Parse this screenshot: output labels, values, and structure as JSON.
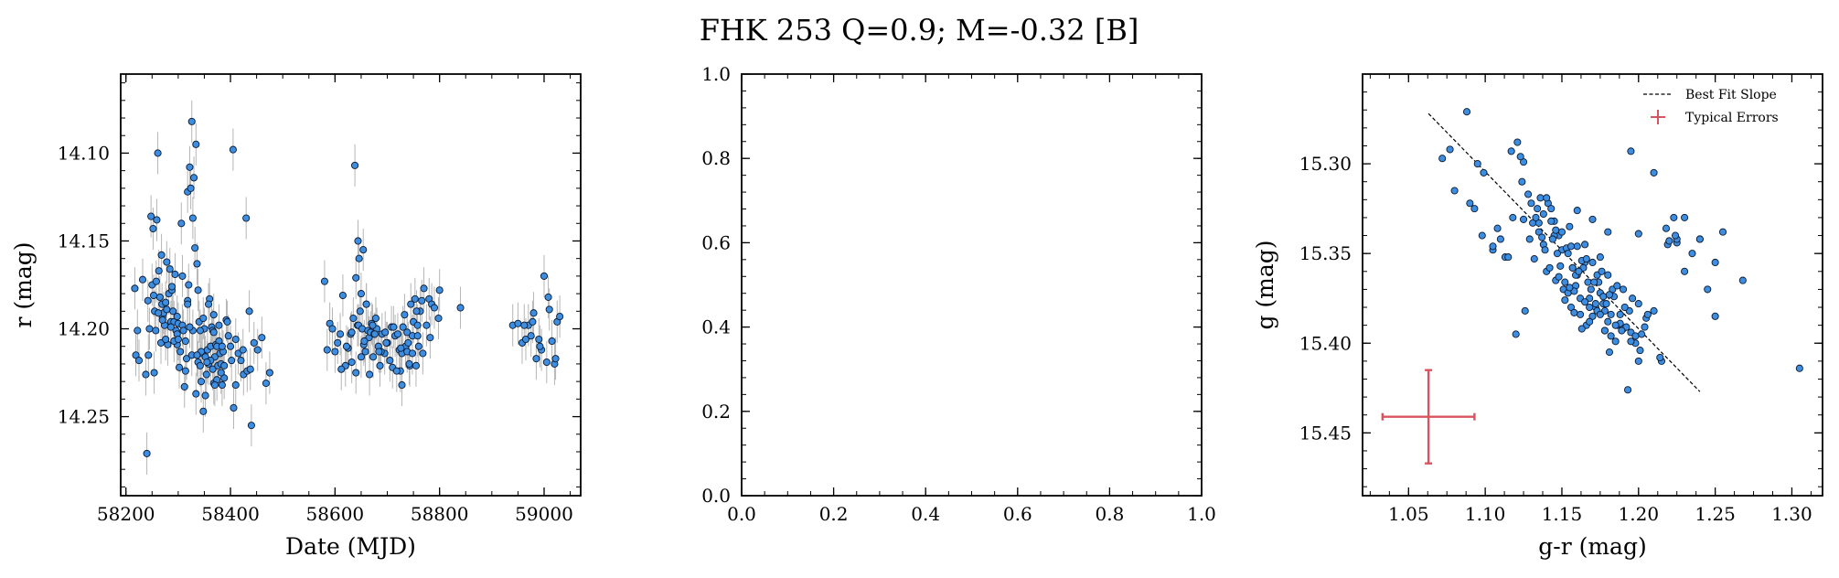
{
  "figure": {
    "title": "FHK 253  Q=0.9; M=-0.32 [B]"
  },
  "colors": {
    "point_fill": "#3d8ee0",
    "point_edge": "#0b1a33",
    "errbar": "#b5b5b5",
    "fit": "#000000",
    "typical": "#d9535f"
  },
  "chart_data": [
    {
      "id": "lightcurve",
      "type": "scatter",
      "xlabel": "Date (MJD)",
      "ylabel": "r (mag)",
      "xlim": [
        58190,
        59070
      ],
      "ylim": [
        14.295,
        14.055
      ],
      "xticks": [
        58200,
        58400,
        58600,
        58800,
        59000
      ],
      "xtick_labels": [
        "58200",
        "58400",
        "58600",
        "58800",
        "59000"
      ],
      "yticks": [
        14.1,
        14.15,
        14.2,
        14.25
      ],
      "ytick_labels": [
        "14.10",
        "14.15",
        "14.20",
        "14.25"
      ],
      "y_error": 0.012,
      "x": [
        58217,
        58219,
        58222,
        58225,
        58232,
        58238,
        58240,
        58243,
        58245,
        58248,
        58250,
        58252,
        58253,
        58255,
        58257,
        58259,
        58261,
        58263,
        58265,
        58267,
        58269,
        58270,
        58272,
        58274,
        58276,
        58278,
        58280,
        58282,
        58284,
        58286,
        58288,
        58290,
        58292,
        58294,
        58296,
        58298,
        58300,
        58302,
        58304,
        58306,
        58308,
        58310,
        58312,
        58314,
        58316,
        58318,
        58320,
        58322,
        58324,
        58326,
        58328,
        58330,
        58332,
        58334,
        58336,
        58338,
        58340,
        58342,
        58344,
        58346,
        58348,
        58350,
        58352,
        58354,
        58356,
        58358,
        58360,
        58362,
        58364,
        58366,
        58368,
        58370,
        58372,
        58374,
        58376,
        58378,
        58380,
        58382,
        58384,
        58386,
        58388,
        58392,
        58396,
        58400,
        58405,
        58410,
        58415,
        58420,
        58425,
        58430,
        58432,
        58436,
        58440,
        58445,
        58452,
        58460,
        58468,
        58475,
        58242,
        58258,
        58268,
        58278,
        58288,
        58298,
        58308,
        58318,
        58328,
        58338,
        58348,
        58358,
        58368,
        58378,
        58298,
        58314,
        58334,
        58352,
        58366,
        58382,
        58326,
        58342,
        58362,
        58374,
        58388,
        58406,
        58438,
        58262,
        58276,
        58292,
        58322,
        58344,
        58370,
        58394,
        58410,
        58424,
        58270,
        58286,
        58300,
        58318,
        58336,
        58355,
        58368,
        58384,
        58254,
        58402,
        58580,
        58585,
        58590,
        58595,
        58600,
        58605,
        58610,
        58615,
        58620,
        58625,
        58630,
        58635,
        58638,
        58640,
        58643,
        58645,
        58648,
        58650,
        58652,
        58655,
        58658,
        58660,
        58663,
        58665,
        58668,
        58670,
        58673,
        58675,
        58678,
        58680,
        58683,
        58686,
        58690,
        58695,
        58700,
        58705,
        58710,
        58715,
        58720,
        58723,
        58725,
        58728,
        58730,
        58733,
        58735,
        58738,
        58740,
        58743,
        58745,
        58748,
        58750,
        58753,
        58755,
        58758,
        58760,
        58763,
        58766,
        58770,
        58775,
        58780,
        58785,
        58790,
        58800,
        58840,
        58612,
        58622,
        58632,
        58646,
        58656,
        58666,
        58676,
        58688,
        58698,
        58708,
        58718,
        58728,
        58738,
        58748,
        58758,
        58640,
        58650,
        58660,
        58672,
        58684,
        58696,
        58712,
        58726,
        58742,
        58756,
        58768,
        58782,
        58798,
        58632,
        58644,
        58654,
        58940,
        58950,
        58958,
        58965,
        58970,
        58975,
        58980,
        58985,
        58990,
        58995,
        59000,
        59005,
        59010,
        59015,
        59020,
        59025,
        59030,
        58962,
        58978,
        58992,
        59008,
        59022
      ],
      "y": [
        14.177,
        14.215,
        14.201,
        14.218,
        14.172,
        14.226,
        14.271,
        14.215,
        14.2,
        14.136,
        14.175,
        14.143,
        14.181,
        14.19,
        14.201,
        14.138,
        14.1,
        14.167,
        14.182,
        14.208,
        14.186,
        14.193,
        14.191,
        14.198,
        14.185,
        14.162,
        14.209,
        14.18,
        14.166,
        14.196,
        14.178,
        14.19,
        14.196,
        14.169,
        14.201,
        14.203,
        14.197,
        14.222,
        14.213,
        14.14,
        14.198,
        14.201,
        14.233,
        14.207,
        14.217,
        14.122,
        14.175,
        14.108,
        14.12,
        14.082,
        14.137,
        14.114,
        14.154,
        14.095,
        14.163,
        14.219,
        14.196,
        14.221,
        14.23,
        14.214,
        14.247,
        14.2,
        14.238,
        14.226,
        14.212,
        14.22,
        14.183,
        14.21,
        14.199,
        14.223,
        14.231,
        14.216,
        14.209,
        14.229,
        14.221,
        14.207,
        14.214,
        14.22,
        14.232,
        14.213,
        14.228,
        14.195,
        14.204,
        14.21,
        14.098,
        14.232,
        14.214,
        14.218,
        14.226,
        14.137,
        14.224,
        14.19,
        14.255,
        14.208,
        14.212,
        14.205,
        14.231,
        14.225,
        14.184,
        14.173,
        14.158,
        14.189,
        14.176,
        14.193,
        14.17,
        14.184,
        14.201,
        14.178,
        14.194,
        14.186,
        14.192,
        14.198,
        14.209,
        14.224,
        14.237,
        14.216,
        14.201,
        14.225,
        14.215,
        14.201,
        14.218,
        14.21,
        14.221,
        14.245,
        14.223,
        14.191,
        14.206,
        14.207,
        14.199,
        14.213,
        14.232,
        14.196,
        14.206,
        14.212,
        14.195,
        14.199,
        14.206,
        14.186,
        14.215,
        14.219,
        14.202,
        14.21,
        14.225,
        14.218,
        14.173,
        14.212,
        14.197,
        14.2,
        14.213,
        14.208,
        14.203,
        14.181,
        14.221,
        14.211,
        14.203,
        14.194,
        14.107,
        14.171,
        14.198,
        14.198,
        14.19,
        14.18,
        14.2,
        14.209,
        14.213,
        14.186,
        14.201,
        14.205,
        14.202,
        14.197,
        14.216,
        14.203,
        14.194,
        14.2,
        14.21,
        14.221,
        14.203,
        14.214,
        14.208,
        14.218,
        14.222,
        14.204,
        14.203,
        14.212,
        14.224,
        14.214,
        14.199,
        14.192,
        14.21,
        14.202,
        14.208,
        14.221,
        14.186,
        14.204,
        14.196,
        14.183,
        14.221,
        14.204,
        14.21,
        14.19,
        14.184,
        14.177,
        14.198,
        14.183,
        14.186,
        14.188,
        14.178,
        14.188,
        14.223,
        14.21,
        14.219,
        14.16,
        14.207,
        14.226,
        14.203,
        14.213,
        14.208,
        14.199,
        14.224,
        14.232,
        14.213,
        14.214,
        14.198,
        14.225,
        14.216,
        14.186,
        14.198,
        14.213,
        14.202,
        14.199,
        14.211,
        14.22,
        14.19,
        14.214,
        14.205,
        14.194,
        14.202,
        14.15,
        14.155,
        14.198,
        14.197,
        14.208,
        14.206,
        14.198,
        14.204,
        14.191,
        14.217,
        14.206,
        14.212,
        14.17,
        14.219,
        14.189,
        14.207,
        14.22,
        14.196,
        14.193,
        14.198,
        14.196,
        14.21,
        14.182,
        14.217
      ]
    },
    {
      "id": "empty",
      "type": "scatter",
      "xlim": [
        0,
        1
      ],
      "ylim": [
        0,
        1
      ],
      "xticks": [
        0,
        0.2,
        0.4,
        0.6,
        0.8,
        1.0
      ],
      "xtick_labels": [
        "0.0",
        "0.2",
        "0.4",
        "0.6",
        "0.8",
        "1.0"
      ],
      "yticks": [
        0,
        0.2,
        0.4,
        0.6,
        0.8,
        1.0
      ],
      "ytick_labels": [
        "0.0",
        "0.2",
        "0.4",
        "0.6",
        "0.8",
        "1.0"
      ]
    },
    {
      "id": "colormag",
      "type": "scatter",
      "xlabel": "g-r (mag)",
      "ylabel": "g (mag)",
      "xlim": [
        1.02,
        1.32
      ],
      "ylim": [
        15.485,
        15.25
      ],
      "xticks": [
        1.05,
        1.1,
        1.15,
        1.2,
        1.25,
        1.3
      ],
      "xtick_labels": [
        "1.05",
        "1.10",
        "1.15",
        "1.20",
        "1.25",
        "1.30"
      ],
      "yticks": [
        15.3,
        15.35,
        15.4,
        15.45
      ],
      "ytick_labels": [
        "15.30",
        "15.35",
        "15.40",
        "15.45"
      ],
      "legend": {
        "placement": "top-right",
        "entries": [
          "Best Fit Slope",
          "Typical Errors"
        ]
      },
      "fit_line": {
        "x": [
          1.063,
          1.24
        ],
        "y": [
          15.272,
          15.427
        ]
      },
      "typical_error": {
        "x": 1.063,
        "y": 15.441,
        "xerr": 0.03,
        "yerr": 0.026
      },
      "x": [
        1.088,
        1.077,
        1.072,
        1.08,
        1.095,
        1.099,
        1.093,
        1.105,
        1.09,
        1.098,
        1.121,
        1.117,
        1.125,
        1.124,
        1.108,
        1.113,
        1.11,
        1.118,
        1.126,
        1.12,
        1.131,
        1.135,
        1.129,
        1.138,
        1.132,
        1.136,
        1.141,
        1.143,
        1.145,
        1.148,
        1.15,
        1.14,
        1.146,
        1.151,
        1.154,
        1.152,
        1.157,
        1.16,
        1.156,
        1.162,
        1.165,
        1.159,
        1.168,
        1.17,
        1.166,
        1.172,
        1.163,
        1.175,
        1.177,
        1.173,
        1.18,
        1.178,
        1.182,
        1.185,
        1.188,
        1.181,
        1.19,
        1.186,
        1.195,
        1.193,
        1.198,
        1.202,
        1.2,
        1.205,
        1.21,
        1.215,
        1.219,
        1.223,
        1.225,
        1.23,
        1.235,
        1.24,
        1.245,
        1.25,
        1.255,
        1.268,
        1.305,
        1.195,
        1.218,
        1.22,
        1.225,
        1.2,
        1.21,
        1.22,
        1.23,
        1.24,
        1.25,
        1.16,
        1.17,
        1.18,
        1.165,
        1.175,
        1.155,
        1.145,
        1.135,
        1.125,
        1.115,
        1.105,
        1.148,
        1.158,
        1.168,
        1.178,
        1.188,
        1.198,
        1.142,
        1.152,
        1.162,
        1.172,
        1.182,
        1.192,
        1.139,
        1.149,
        1.159,
        1.169,
        1.179,
        1.189,
        1.137,
        1.147,
        1.157,
        1.167,
        1.177,
        1.153,
        1.163,
        1.173,
        1.183,
        1.143,
        1.133,
        1.123,
        1.13,
        1.14,
        1.15,
        1.16,
        1.17,
        1.18,
        1.19,
        1.2,
        1.155,
        1.165,
        1.175,
        1.185,
        1.195,
        1.128,
        1.138,
        1.158,
        1.168,
        1.178,
        1.144,
        1.154,
        1.164,
        1.174,
        1.184,
        1.194,
        1.204,
        1.134,
        1.146,
        1.156,
        1.166,
        1.176,
        1.186,
        1.196,
        1.206,
        1.214,
        1.224,
        1.161,
        1.171,
        1.181,
        1.191,
        1.201
      ],
      "y": [
        15.271,
        15.292,
        15.297,
        15.315,
        15.3,
        15.305,
        15.325,
        15.348,
        15.322,
        15.34,
        15.288,
        15.293,
        15.299,
        15.31,
        15.336,
        15.352,
        15.342,
        15.33,
        15.382,
        15.395,
        15.333,
        15.338,
        15.342,
        15.345,
        15.353,
        15.319,
        15.322,
        15.325,
        15.332,
        15.34,
        15.348,
        15.36,
        15.365,
        15.37,
        15.372,
        15.376,
        15.358,
        15.362,
        15.38,
        15.384,
        15.355,
        15.368,
        15.375,
        15.385,
        15.39,
        15.38,
        15.392,
        15.372,
        15.378,
        15.382,
        15.388,
        15.393,
        15.396,
        15.399,
        15.384,
        15.405,
        15.392,
        15.39,
        15.394,
        15.426,
        15.4,
        15.395,
        15.41,
        15.386,
        15.382,
        15.41,
        15.345,
        15.33,
        15.344,
        15.36,
        15.35,
        15.342,
        15.37,
        15.385,
        15.338,
        15.365,
        15.414,
        15.293,
        15.336,
        15.343,
        15.342,
        15.339,
        15.305,
        15.343,
        15.33,
        15.342,
        15.355,
        15.326,
        15.331,
        15.338,
        15.345,
        15.352,
        15.335,
        15.34,
        15.333,
        15.331,
        15.352,
        15.346,
        15.363,
        15.371,
        15.38,
        15.382,
        15.389,
        15.396,
        15.358,
        15.366,
        15.375,
        15.378,
        15.384,
        15.391,
        15.348,
        15.357,
        15.362,
        15.37,
        15.378,
        15.393,
        15.341,
        15.35,
        15.358,
        15.366,
        15.374,
        15.347,
        15.354,
        15.362,
        15.37,
        15.332,
        15.33,
        15.296,
        15.322,
        15.319,
        15.338,
        15.346,
        15.355,
        15.362,
        15.37,
        15.378,
        15.369,
        15.377,
        15.384,
        15.39,
        15.399,
        15.317,
        15.328,
        15.383,
        15.388,
        15.393,
        15.342,
        15.35,
        15.358,
        15.366,
        15.374,
        15.382,
        15.391,
        15.325,
        15.337,
        15.346,
        15.353,
        15.36,
        15.368,
        15.375,
        15.384,
        15.408,
        15.34,
        15.36,
        15.366,
        15.373,
        15.38,
        15.404
      ]
    }
  ]
}
